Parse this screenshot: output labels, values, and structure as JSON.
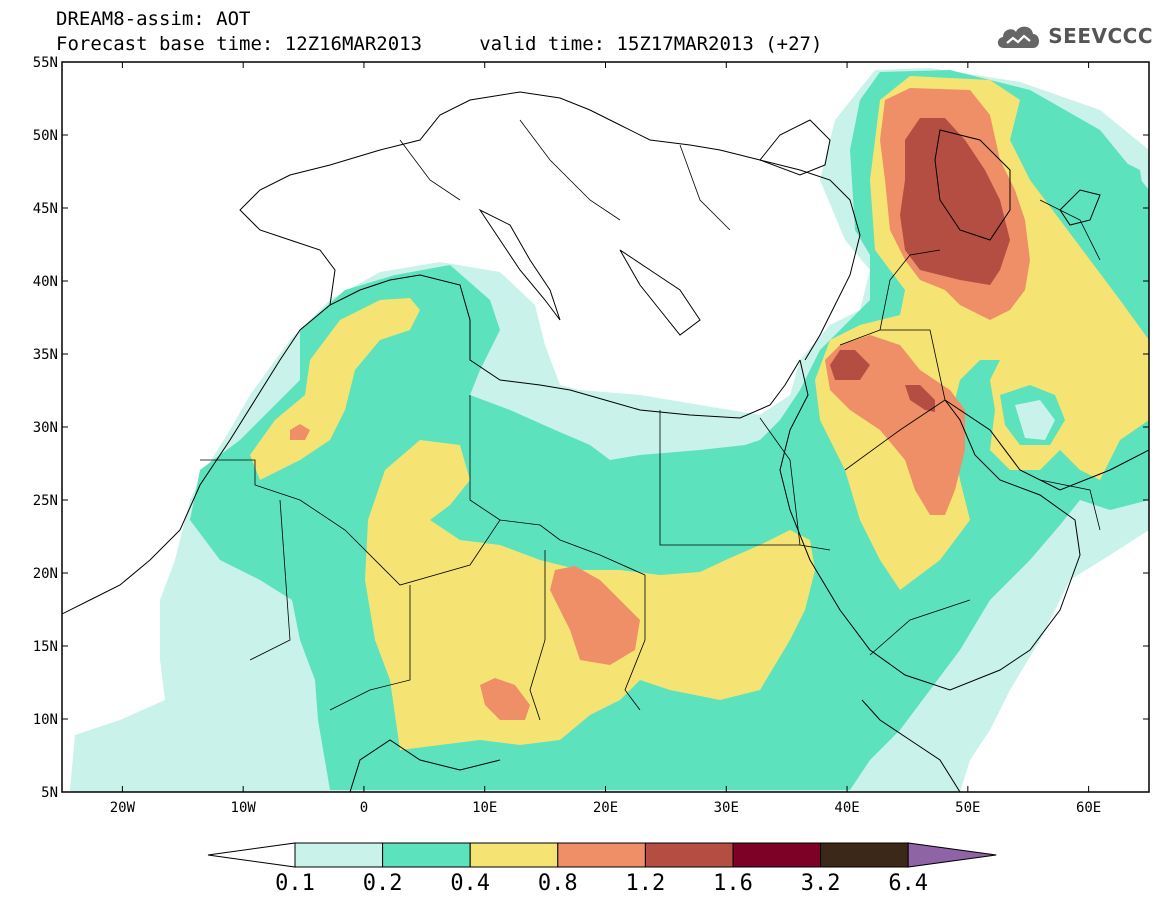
{
  "header": {
    "line1": "DREAM8-assim: AOT",
    "line2": "Forecast base time: 12Z16MAR2013     valid time: 15Z17MAR2013 (+27)"
  },
  "logo": {
    "text": "SEEVCCC",
    "icon": "cloud-icon"
  },
  "map": {
    "lon_range": [
      -25,
      65
    ],
    "lat_range": [
      5,
      55
    ],
    "lat_ticks": [
      {
        "value": 55,
        "label": "55N"
      },
      {
        "value": 50,
        "label": "50N"
      },
      {
        "value": 45,
        "label": "45N"
      },
      {
        "value": 40,
        "label": "40N"
      },
      {
        "value": 35,
        "label": "35N"
      },
      {
        "value": 30,
        "label": "30N"
      },
      {
        "value": 25,
        "label": "25N"
      },
      {
        "value": 20,
        "label": "20N"
      },
      {
        "value": 15,
        "label": "15N"
      },
      {
        "value": 10,
        "label": "10N"
      },
      {
        "value": 5,
        "label": "5N"
      }
    ],
    "lon_ticks": [
      {
        "value": -20,
        "label": "20W"
      },
      {
        "value": -10,
        "label": "10W"
      },
      {
        "value": 0,
        "label": "0"
      },
      {
        "value": 10,
        "label": "10E"
      },
      {
        "value": 20,
        "label": "20E"
      },
      {
        "value": 30,
        "label": "30E"
      },
      {
        "value": 40,
        "label": "40E"
      },
      {
        "value": 50,
        "label": "50E"
      },
      {
        "value": 60,
        "label": "60E"
      }
    ]
  },
  "colorbar": {
    "colors": [
      "#ffffff",
      "#c8f2ea",
      "#5ce2bc",
      "#f5e474",
      "#ee8f68",
      "#b44e42",
      "#7d0026",
      "#3c2818",
      "#8e64a6"
    ],
    "boundaries": [
      "0.1",
      "0.2",
      "0.4",
      "0.8",
      "1.2",
      "1.6",
      "3.2",
      "6.4"
    ]
  }
}
